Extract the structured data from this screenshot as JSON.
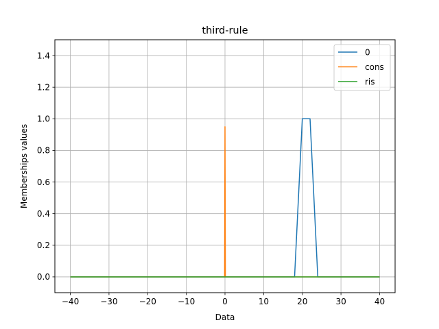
{
  "chart_data": {
    "type": "line",
    "title": "third-rule",
    "xlabel": "Data",
    "ylabel": "Memberships values",
    "xlim": [
      -44,
      44
    ],
    "ylim": [
      -0.1,
      1.5
    ],
    "xticks": [
      -40,
      -30,
      -20,
      -10,
      0,
      10,
      20,
      30,
      40
    ],
    "yticks": [
      0.0,
      0.2,
      0.4,
      0.6,
      0.8,
      1.0,
      1.2,
      1.4
    ],
    "xtick_labels": [
      "−40",
      "−30",
      "−20",
      "−10",
      "0",
      "10",
      "20",
      "30",
      "40"
    ],
    "ytick_labels": [
      "0.0",
      "0.2",
      "0.4",
      "0.6",
      "0.8",
      "1.0",
      "1.2",
      "1.4"
    ],
    "grid": true,
    "legend_position": "top-right",
    "series": [
      {
        "name": "0",
        "color": "#1f77b4",
        "x": [
          -40,
          18,
          20,
          22,
          24,
          40
        ],
        "y": [
          0,
          0,
          1,
          1,
          0,
          0
        ]
      },
      {
        "name": "cons",
        "color": "#ff7f0e",
        "x": [
          -40,
          -0.1,
          0,
          0.1,
          40
        ],
        "y": [
          0,
          0,
          0.95,
          0,
          0
        ]
      },
      {
        "name": "ris",
        "color": "#2ca02c",
        "x": [
          -40,
          40
        ],
        "y": [
          0,
          0
        ]
      }
    ]
  }
}
